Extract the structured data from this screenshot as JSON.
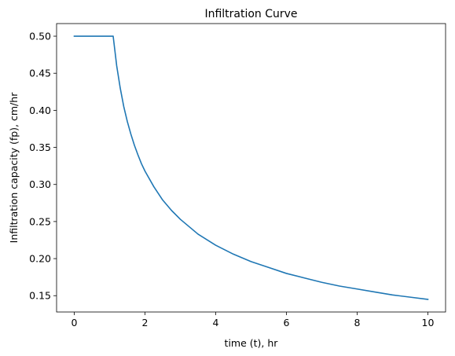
{
  "chart_data": {
    "type": "line",
    "title": "Infiltration Curve",
    "xlabel": "time (t), hr",
    "ylabel": "Infiltration capacity (fp), cm/hr",
    "xlim": [
      -0.5,
      10.5
    ],
    "ylim": [
      0.128,
      0.517
    ],
    "x_ticks": [
      0,
      2,
      4,
      6,
      8,
      10
    ],
    "x_tick_labels": [
      "0",
      "2",
      "4",
      "6",
      "8",
      "10"
    ],
    "y_ticks": [
      0.15,
      0.2,
      0.25,
      0.3,
      0.35,
      0.4,
      0.45,
      0.5
    ],
    "y_tick_labels": [
      "0.15",
      "0.20",
      "0.25",
      "0.30",
      "0.35",
      "0.40",
      "0.45",
      "0.50"
    ],
    "grid": false,
    "series": [
      {
        "color": "#1f77b4",
        "x": [
          0,
          0.5,
          1.0,
          1.1,
          1.2,
          1.3,
          1.4,
          1.5,
          1.6,
          1.7,
          1.8,
          1.9,
          2.0,
          2.25,
          2.5,
          2.75,
          3.0,
          3.5,
          4.0,
          4.5,
          5.0,
          5.5,
          6.0,
          6.5,
          7.0,
          7.5,
          8.0,
          8.5,
          9.0,
          9.5,
          10.0
        ],
        "y": [
          0.5,
          0.5,
          0.5,
          0.5,
          0.46,
          0.43,
          0.405,
          0.385,
          0.368,
          0.353,
          0.34,
          0.328,
          0.318,
          0.297,
          0.279,
          0.265,
          0.253,
          0.233,
          0.218,
          0.206,
          0.196,
          0.188,
          0.18,
          0.174,
          0.168,
          0.163,
          0.159,
          0.155,
          0.151,
          0.148,
          0.145
        ]
      }
    ]
  }
}
